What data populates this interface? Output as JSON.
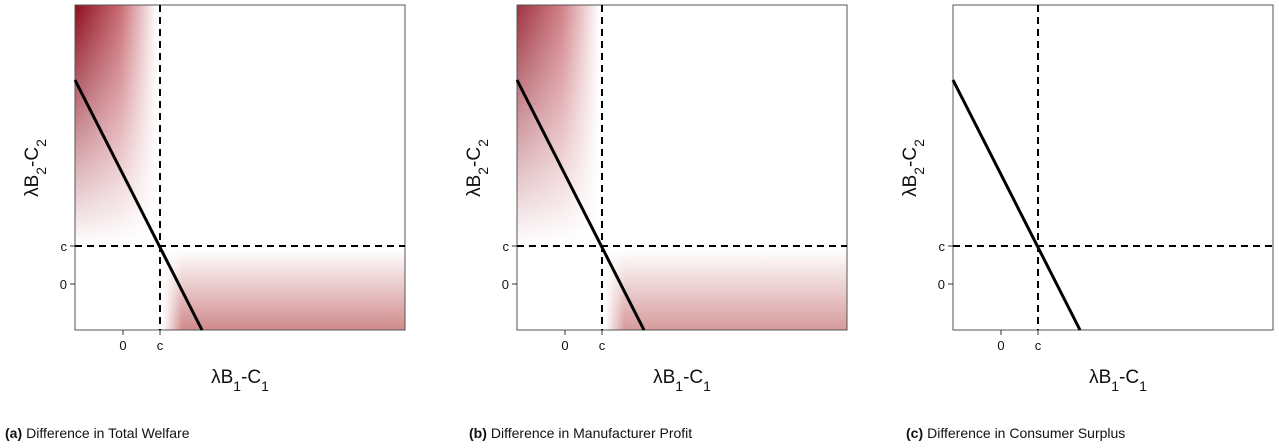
{
  "panels": [
    {
      "label": "(a)",
      "caption": "Difference in Total Welfare",
      "xlabel": [
        "λB",
        "1",
        "-C",
        "1"
      ],
      "ylabel": [
        "λB",
        "2",
        "-C",
        "2"
      ],
      "xticks": [
        "0",
        "c"
      ],
      "yticks": [
        "c",
        "0"
      ]
    },
    {
      "label": "(b)",
      "caption": "Difference in Manufacturer Profit",
      "xlabel": [
        "λB",
        "1",
        "-C",
        "1"
      ],
      "ylabel": [
        "λB",
        "2",
        "-C",
        "2"
      ],
      "xticks": [
        "0",
        "c"
      ],
      "yticks": [
        "c",
        "0"
      ]
    },
    {
      "label": "(c)",
      "caption": "Difference in Consumer Surplus",
      "xlabel": [
        "λB",
        "1",
        "-C",
        "1"
      ],
      "ylabel": [
        "λB",
        "2",
        "-C",
        "2"
      ],
      "xticks": [
        "0",
        "c"
      ],
      "yticks": [
        "c",
        "0"
      ]
    }
  ]
}
